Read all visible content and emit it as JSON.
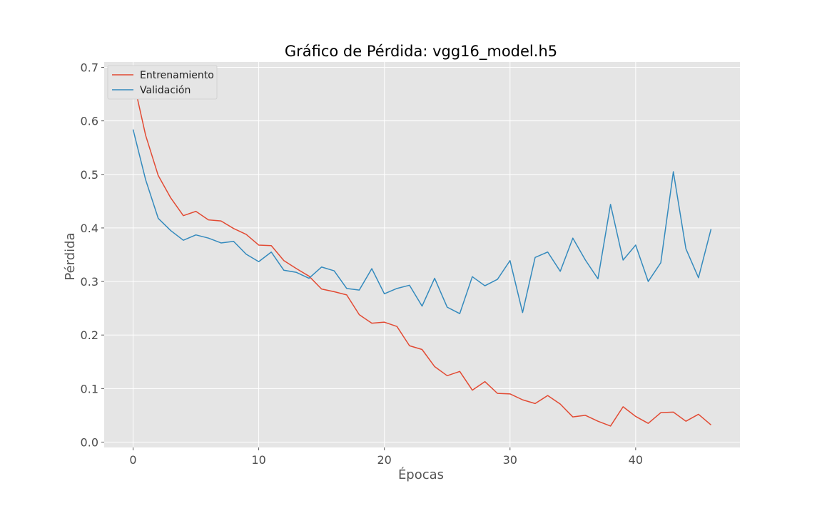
{
  "chart_data": {
    "type": "line",
    "title": "Gráfico de Pérdida: vgg16_model.h5",
    "xlabel": "Épocas",
    "ylabel": "Pérdida",
    "xlim": [
      -2.3,
      48.3
    ],
    "ylim": [
      -0.01,
      0.71
    ],
    "xticks": [
      0,
      10,
      20,
      30,
      40
    ],
    "yticks": [
      0.0,
      0.1,
      0.2,
      0.3,
      0.4,
      0.5,
      0.6,
      0.7
    ],
    "xtick_labels": [
      "0",
      "10",
      "20",
      "30",
      "40"
    ],
    "ytick_labels": [
      "0.0",
      "0.1",
      "0.2",
      "0.3",
      "0.4",
      "0.5",
      "0.6",
      "0.7"
    ],
    "grid": true,
    "legend_position": "top-left",
    "style": {
      "background": "#e5e5e5",
      "grid_color": "#ffffff"
    },
    "x": [
      0,
      1,
      2,
      3,
      4,
      5,
      6,
      7,
      8,
      9,
      10,
      11,
      12,
      13,
      14,
      15,
      16,
      17,
      18,
      19,
      20,
      21,
      22,
      23,
      24,
      25,
      26,
      27,
      28,
      29,
      30,
      31,
      32,
      33,
      34,
      35,
      36,
      37,
      38,
      39,
      40,
      41,
      42,
      43,
      44,
      45,
      46
    ],
    "series": [
      {
        "name": "Entrenamiento",
        "color": "#e24a33",
        "values": [
          0.678,
          0.573,
          0.498,
          0.456,
          0.423,
          0.431,
          0.415,
          0.413,
          0.399,
          0.388,
          0.368,
          0.367,
          0.339,
          0.324,
          0.31,
          0.286,
          0.281,
          0.275,
          0.238,
          0.222,
          0.224,
          0.216,
          0.18,
          0.173,
          0.141,
          0.124,
          0.132,
          0.097,
          0.113,
          0.091,
          0.09,
          0.079,
          0.072,
          0.087,
          0.071,
          0.047,
          0.05,
          0.039,
          0.03,
          0.066,
          0.048,
          0.035,
          0.055,
          0.056,
          0.039,
          0.052,
          0.032
        ]
      },
      {
        "name": "Validación",
        "color": "#348abd",
        "values": [
          0.584,
          0.49,
          0.418,
          0.395,
          0.377,
          0.387,
          0.381,
          0.372,
          0.375,
          0.351,
          0.337,
          0.355,
          0.321,
          0.317,
          0.306,
          0.327,
          0.32,
          0.287,
          0.284,
          0.324,
          0.277,
          0.287,
          0.293,
          0.254,
          0.306,
          0.252,
          0.24,
          0.309,
          0.292,
          0.304,
          0.339,
          0.242,
          0.345,
          0.355,
          0.319,
          0.381,
          0.34,
          0.305,
          0.444,
          0.34,
          0.368,
          0.3,
          0.335,
          0.505,
          0.361,
          0.307,
          0.398
        ]
      }
    ]
  }
}
